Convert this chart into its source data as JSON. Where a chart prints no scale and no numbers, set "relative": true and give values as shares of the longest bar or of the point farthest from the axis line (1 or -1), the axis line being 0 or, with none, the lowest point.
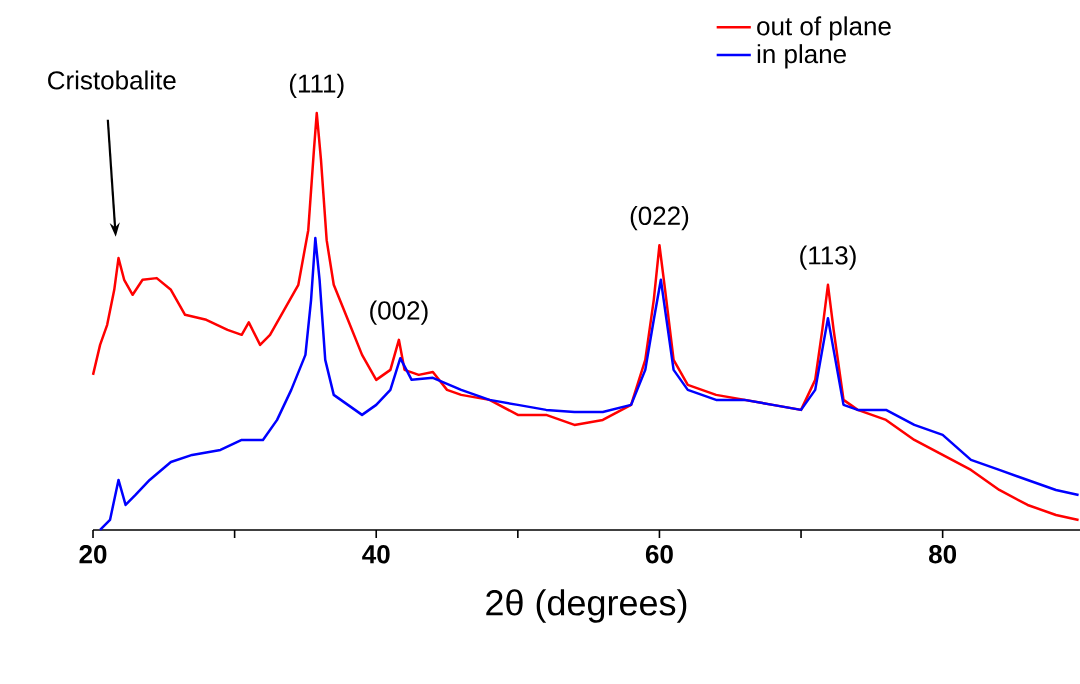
{
  "chart_data": {
    "type": "line",
    "relative": true,
    "xlabel": "2θ (degrees)",
    "xlim": [
      20,
      89.7
    ],
    "xticks": [
      20,
      {
        "value": 30,
        "label": null
      },
      40,
      {
        "value": 50,
        "label": null
      },
      60,
      {
        "value": 70,
        "label": null
      },
      80
    ],
    "legend": "top right",
    "annotations": [
      "Cristobalite",
      {
        "text": "(111)",
        "x": 35.8,
        "y": 1.0
      },
      {
        "text": "(002)",
        "x": 41.6,
        "y": 0.456
      },
      {
        "text": "(022)",
        "x": 60,
        "y": 0.683
      },
      {
        "text": "(113)",
        "x": 71.9,
        "y": 0.588
      }
    ],
    "series": [
      {
        "name": "out of plane",
        "color": "#ff0000",
        "x": [
          20,
          20.5,
          21,
          21.5,
          21.8,
          22.2,
          22.8,
          23.5,
          24.5,
          25.5,
          26.5,
          28,
          29.5,
          30.5,
          31,
          31.8,
          32.5,
          33.5,
          34.5,
          35.2,
          35.6,
          35.8,
          36.1,
          36.5,
          37,
          38,
          39,
          40,
          41,
          41.6,
          42,
          43,
          44,
          45,
          46,
          48,
          50,
          52,
          54,
          56,
          58,
          59,
          59.6,
          60,
          60.4,
          61,
          62,
          64,
          66,
          68,
          70,
          71,
          71.5,
          71.9,
          72.3,
          73,
          74,
          76,
          78,
          80,
          82,
          84,
          86,
          88,
          89.6
        ],
        "values": [
          0.372,
          0.444,
          0.492,
          0.576,
          0.652,
          0.6,
          0.564,
          0.6,
          0.604,
          0.576,
          0.516,
          0.504,
          0.48,
          0.468,
          0.498,
          0.444,
          0.468,
          0.528,
          0.588,
          0.719,
          0.911,
          1.0,
          0.887,
          0.695,
          0.588,
          0.504,
          0.42,
          0.36,
          0.384,
          0.456,
          0.384,
          0.372,
          0.379,
          0.336,
          0.324,
          0.312,
          0.276,
          0.276,
          0.252,
          0.264,
          0.3,
          0.408,
          0.552,
          0.683,
          0.576,
          0.408,
          0.348,
          0.324,
          0.312,
          0.3,
          0.288,
          0.36,
          0.48,
          0.588,
          0.48,
          0.312,
          0.288,
          0.264,
          0.216,
          0.18,
          0.144,
          0.096,
          0.06,
          0.036,
          0.024
        ]
      },
      {
        "name": "in plane",
        "color": "#0000ff",
        "x": [
          20.5,
          21.2,
          21.8,
          22.3,
          23,
          24,
          25.5,
          27,
          29,
          30.5,
          32,
          33,
          34,
          35,
          35.4,
          35.7,
          36,
          36.4,
          37,
          38,
          39,
          40,
          41,
          41.7,
          42.5,
          44,
          46,
          48,
          50,
          52,
          54,
          56,
          58,
          59,
          59.6,
          60.1,
          60.5,
          61,
          62,
          64,
          66,
          68,
          70,
          71,
          71.5,
          71.9,
          72.3,
          73,
          74,
          76,
          78,
          80,
          82,
          84,
          86,
          88,
          89.6
        ],
        "values": [
          0,
          0.024,
          0.12,
          0.06,
          0.084,
          0.12,
          0.163,
          0.18,
          0.192,
          0.216,
          0.216,
          0.264,
          0.336,
          0.42,
          0.552,
          0.7,
          0.6,
          0.408,
          0.324,
          0.3,
          0.276,
          0.3,
          0.336,
          0.412,
          0.36,
          0.365,
          0.336,
          0.312,
          0.3,
          0.288,
          0.283,
          0.283,
          0.3,
          0.384,
          0.504,
          0.6,
          0.504,
          0.384,
          0.336,
          0.312,
          0.312,
          0.3,
          0.288,
          0.336,
          0.432,
          0.508,
          0.432,
          0.3,
          0.288,
          0.288,
          0.252,
          0.228,
          0.168,
          0.144,
          0.12,
          0.096,
          0.084
        ]
      }
    ]
  }
}
